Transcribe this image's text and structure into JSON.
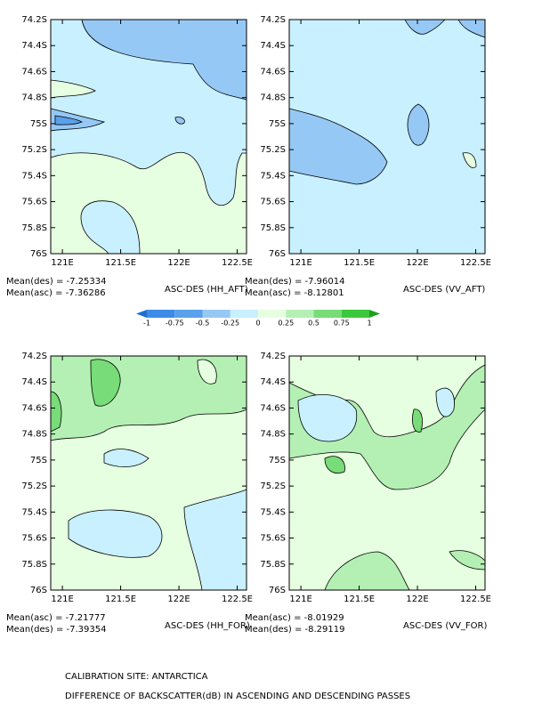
{
  "chart_data": [
    {
      "type": "contour",
      "title": "ASC-DES (HH_AFT)",
      "stats": [
        "Mean(des) = -7.25334",
        "Mean(asc) = -7.36286"
      ],
      "xlim": [
        120.9,
        122.58
      ],
      "xticks": [
        {
          "value": 121,
          "label": "121E"
        },
        {
          "value": 121.5,
          "label": "121.5E"
        },
        {
          "value": 122,
          "label": "122E"
        },
        {
          "value": 122.5,
          "label": "122.5E"
        }
      ],
      "ylim": [
        -76,
        -74.2
      ],
      "yticks": [
        {
          "value": -74.2,
          "label": "74.2S"
        },
        {
          "value": -74.4,
          "label": "74.4S"
        },
        {
          "value": -74.6,
          "label": "74.6S"
        },
        {
          "value": -74.8,
          "label": "74.8S"
        },
        {
          "value": -75,
          "label": "75S"
        },
        {
          "value": -75.2,
          "label": "75.2S"
        },
        {
          "value": -75.4,
          "label": "75.4S"
        },
        {
          "value": -75.6,
          "label": "75.6S"
        },
        {
          "value": -75.8,
          "label": "75.8S"
        },
        {
          "value": -76,
          "label": "76S"
        }
      ]
    },
    {
      "type": "contour",
      "title": "ASC-DES (VV_AFT)",
      "stats": [
        "Mean(des) = -7.96014",
        "Mean(asc) = -8.12801"
      ],
      "xlim": [
        120.9,
        122.58
      ],
      "xticks": [
        {
          "value": 121,
          "label": "121E"
        },
        {
          "value": 121.5,
          "label": "121.5E"
        },
        {
          "value": 122,
          "label": "122E"
        },
        {
          "value": 122.5,
          "label": "122.5E"
        }
      ],
      "ylim": [
        -76,
        -74.2
      ],
      "yticks": [
        {
          "value": -74.2,
          "label": "74.2S"
        },
        {
          "value": -74.4,
          "label": "74.4S"
        },
        {
          "value": -74.6,
          "label": "74.6S"
        },
        {
          "value": -74.8,
          "label": "74.8S"
        },
        {
          "value": -75,
          "label": "75S"
        },
        {
          "value": -75.2,
          "label": "75.2S"
        },
        {
          "value": -75.4,
          "label": "75.4S"
        },
        {
          "value": -75.6,
          "label": "75.6S"
        },
        {
          "value": -75.8,
          "label": "75.8S"
        },
        {
          "value": -76,
          "label": "76S"
        }
      ]
    },
    {
      "type": "contour",
      "title": "ASC-DES (HH_FOR)",
      "stats": [
        "Mean(asc) = -7.21777",
        "Mean(des) = -7.39354"
      ],
      "xlim": [
        120.9,
        122.58
      ],
      "xticks": [
        {
          "value": 121,
          "label": "121E"
        },
        {
          "value": 121.5,
          "label": "121.5E"
        },
        {
          "value": 122,
          "label": "122E"
        },
        {
          "value": 122.5,
          "label": "122.5E"
        }
      ],
      "ylim": [
        -76,
        -74.2
      ],
      "yticks": [
        {
          "value": -74.2,
          "label": "74.2S"
        },
        {
          "value": -74.4,
          "label": "74.4S"
        },
        {
          "value": -74.6,
          "label": "74.6S"
        },
        {
          "value": -74.8,
          "label": "74.8S"
        },
        {
          "value": -75,
          "label": "75S"
        },
        {
          "value": -75.2,
          "label": "75.2S"
        },
        {
          "value": -75.4,
          "label": "75.4S"
        },
        {
          "value": -75.6,
          "label": "75.6S"
        },
        {
          "value": -75.8,
          "label": "75.8S"
        },
        {
          "value": -76,
          "label": "76S"
        }
      ]
    },
    {
      "type": "contour",
      "title": "ASC-DES (VV_FOR)",
      "stats": [
        "Mean(asc) = -8.01929",
        "Mean(des) = -8.29119"
      ],
      "xlim": [
        120.9,
        122.58
      ],
      "xticks": [
        {
          "value": 121,
          "label": "121E"
        },
        {
          "value": 121.5,
          "label": "121.5E"
        },
        {
          "value": 122,
          "label": "122E"
        },
        {
          "value": 122.5,
          "label": "122.5E"
        }
      ],
      "ylim": [
        -76,
        -74.2
      ],
      "yticks": [
        {
          "value": -74.2,
          "label": "74.2S"
        },
        {
          "value": -74.4,
          "label": "74.4S"
        },
        {
          "value": -74.6,
          "label": "74.6S"
        },
        {
          "value": -74.8,
          "label": "74.8S"
        },
        {
          "value": -75,
          "label": "75S"
        },
        {
          "value": -75.2,
          "label": "75.2S"
        },
        {
          "value": -75.4,
          "label": "75.4S"
        },
        {
          "value": -75.6,
          "label": "75.6S"
        },
        {
          "value": -75.8,
          "label": "75.8S"
        },
        {
          "value": -76,
          "label": "76S"
        }
      ]
    }
  ],
  "colorbar": {
    "levels": [
      -1,
      -0.75,
      -0.5,
      -0.25,
      0,
      0.25,
      0.5,
      0.75,
      1
    ],
    "colors": [
      "#1e6ed2",
      "#3c8ce6",
      "#5aa0eb",
      "#96c8f5",
      "#c8f0ff",
      "#e6ffe0",
      "#b4f0b4",
      "#78dc78",
      "#3cc83c",
      "#1ea01e"
    ]
  },
  "footer": [
    "CALIBRATION SITE: ANTARCTICA",
    "DIFFERENCE OF BACKSCATTER(dB) IN ASCENDING AND DESCENDING PASSES"
  ]
}
